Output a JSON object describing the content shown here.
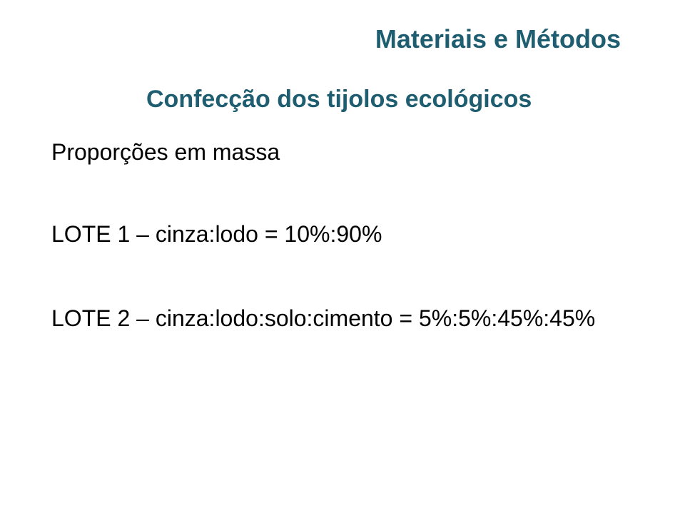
{
  "slide": {
    "title": "Materiais e Métodos",
    "subtitle": "Confecção dos tijolos ecológicos",
    "line1": "Proporções em massa",
    "line2": "LOTE 1 – cinza:lodo  = 10%:90%",
    "line3": "LOTE 2 – cinza:lodo:solo:cimento = 5%:5%:45%:45%",
    "title_color": "#1f5d70",
    "subtitle_color": "#1f5d70",
    "text_color": "#000000",
    "background": "#ffffff"
  }
}
